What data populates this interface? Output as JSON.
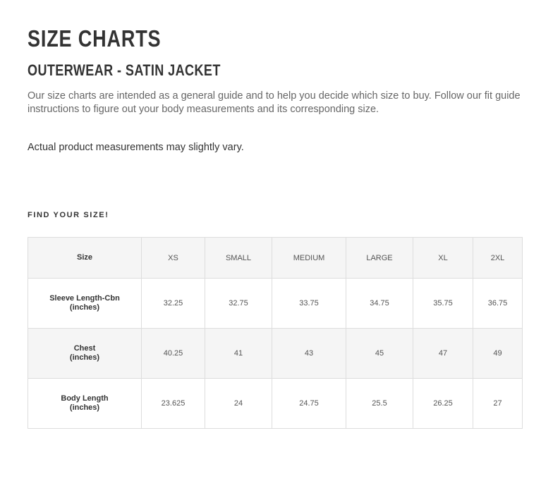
{
  "title": "SIZE CHARTS",
  "subtitle": "OUTERWEAR - SATIN JACKET",
  "intro": "Our size charts are intended as a general guide and to help you decide which size to buy. Follow our fit guide instructions to figure out your body measurements and its corresponding size.",
  "note": "Actual product measurements may slightly vary.",
  "find_label": "FIND YOUR SIZE!",
  "table": {
    "headers": [
      "Size",
      "XS",
      "SMALL",
      "MEDIUM",
      "LARGE",
      "XL",
      "2XL"
    ],
    "rows": [
      {
        "label": "Sleeve Length-Cbn",
        "unit": "(inches)",
        "values": [
          "32.25",
          "32.75",
          "33.75",
          "34.75",
          "35.75",
          "36.75"
        ]
      },
      {
        "label": "Chest",
        "unit": "(inches)",
        "values": [
          "40.25",
          "41",
          "43",
          "45",
          "47",
          "49"
        ]
      },
      {
        "label": "Body Length",
        "unit": "(inches)",
        "values": [
          "23.625",
          "24",
          "24.75",
          "25.5",
          "26.25",
          "27"
        ]
      }
    ]
  }
}
